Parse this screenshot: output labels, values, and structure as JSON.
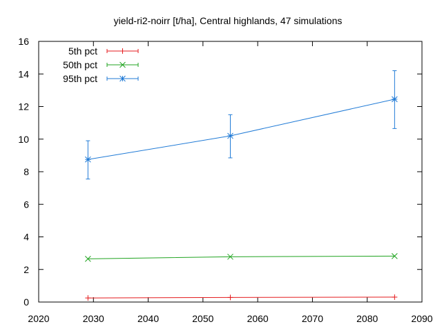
{
  "chart_data": {
    "type": "line",
    "title": "yield-ri2-noirr [t/ha], Central highlands, 47 simulations",
    "xlabel": "",
    "ylabel": "",
    "xlim": [
      2020,
      2090
    ],
    "ylim": [
      0,
      16
    ],
    "x_ticks": [
      "2020",
      "2030",
      "2040",
      "2050",
      "2060",
      "2070",
      "2080",
      "2090"
    ],
    "y_ticks": [
      "0",
      "2",
      "4",
      "6",
      "8",
      "10",
      "12",
      "14",
      "16"
    ],
    "grid": false,
    "legend_position": "top-left",
    "x": [
      2029,
      2055,
      2085
    ],
    "series": [
      {
        "name": "5th pct",
        "color": "#e41a1c",
        "marker": "plus",
        "values": [
          0.25,
          0.28,
          0.3
        ],
        "err_low": [
          null,
          null,
          null
        ],
        "err_high": [
          null,
          null,
          null
        ]
      },
      {
        "name": "50th pct",
        "color": "#1fa31f",
        "marker": "cross",
        "values": [
          2.65,
          2.78,
          2.82
        ],
        "err_low": [
          null,
          null,
          null
        ],
        "err_high": [
          null,
          null,
          null
        ]
      },
      {
        "name": "95th pct",
        "color": "#1f7ad6",
        "marker": "star",
        "values": [
          8.75,
          10.2,
          12.45
        ],
        "err_low": [
          7.55,
          8.85,
          10.65
        ],
        "err_high": [
          9.9,
          11.5,
          14.2
        ]
      }
    ]
  }
}
